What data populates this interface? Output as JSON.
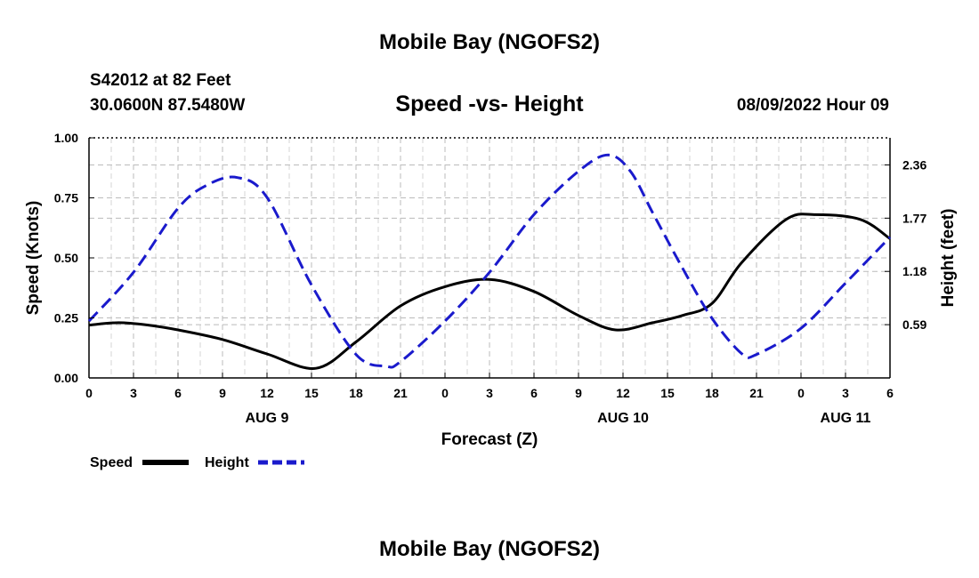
{
  "page": {
    "top_title": "Mobile Bay (NGOFS2)",
    "bottom_title": "Mobile Bay (NGOFS2)",
    "station_line": "S42012 at 82 Feet",
    "coords_line": "30.0600N  87.5480W",
    "date_line": "08/09/2022 Hour 09"
  },
  "chart_data": {
    "type": "line",
    "title": "Speed -vs- Height",
    "xlabel": "Forecast (Z)",
    "ylabel": "Speed (Knots)",
    "y2label": "Height (feet)",
    "x_tick_labels": [
      "0",
      "3",
      "6",
      "9",
      "12",
      "15",
      "18",
      "21",
      "0",
      "3",
      "6",
      "9",
      "12",
      "15",
      "18",
      "21",
      "0",
      "3",
      "6"
    ],
    "x_hours": [
      0,
      3,
      6,
      9,
      12,
      15,
      18,
      21,
      24,
      27,
      30,
      33,
      36,
      39,
      42,
      45,
      48,
      51,
      54
    ],
    "day_labels": [
      {
        "label": "AUG 9",
        "hour": 12
      },
      {
        "label": "AUG 10",
        "hour": 36
      },
      {
        "label": "AUG 11",
        "hour": 51
      }
    ],
    "xlim": [
      0,
      54
    ],
    "ylim": [
      0,
      1
    ],
    "y_ticks": [
      0,
      0.25,
      0.5,
      0.75,
      1.0
    ],
    "y_tick_labels": [
      "0.00",
      "0.25",
      "0.50",
      "0.75",
      "1.00"
    ],
    "y2lim": [
      0,
      2.66
    ],
    "y2_ticks": [
      0.59,
      1.18,
      1.77,
      2.36
    ],
    "y2_tick_labels": [
      "0.59",
      "1.18",
      "1.77",
      "2.36"
    ],
    "grid": true,
    "legend_position": "bottom-left",
    "series": [
      {
        "name": "Speed",
        "axis": "left",
        "color": "#000000",
        "style": "solid",
        "x": [
          0,
          2,
          4,
          6,
          9,
          12,
          15.3,
          18,
          21,
          24,
          27,
          30,
          33,
          35.5,
          38,
          40,
          42,
          44,
          47,
          49,
          52,
          54
        ],
        "values": [
          0.22,
          0.23,
          0.22,
          0.2,
          0.16,
          0.1,
          0.04,
          0.15,
          0.3,
          0.38,
          0.41,
          0.36,
          0.26,
          0.2,
          0.23,
          0.26,
          0.31,
          0.48,
          0.66,
          0.68,
          0.66,
          0.58
        ]
      },
      {
        "name": "Height",
        "axis": "right",
        "color": "#1a1acc",
        "style": "dashed",
        "x": [
          0,
          3,
          6,
          8,
          10,
          12,
          15,
          18,
          20,
          21,
          24,
          27,
          30,
          33,
          35,
          36.5,
          38,
          40,
          42,
          44,
          45,
          48,
          51,
          54
        ],
        "values": [
          0.63,
          1.17,
          1.88,
          2.14,
          2.22,
          2.0,
          1.03,
          0.26,
          0.13,
          0.18,
          0.63,
          1.17,
          1.81,
          2.29,
          2.47,
          2.29,
          1.83,
          1.22,
          0.66,
          0.27,
          0.26,
          0.55,
          1.05,
          1.56
        ]
      }
    ]
  }
}
